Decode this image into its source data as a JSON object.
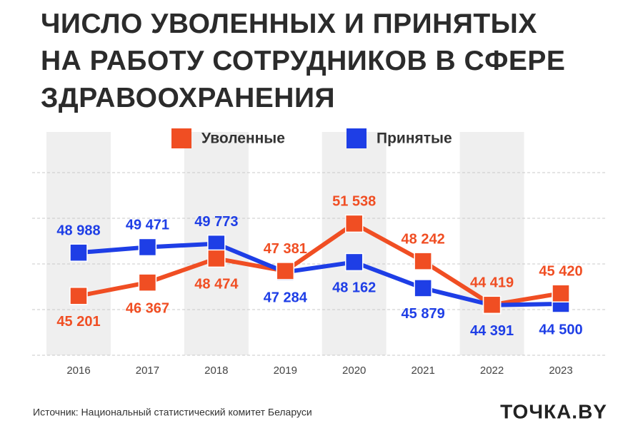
{
  "chart_data": {
    "type": "line",
    "title_lines": [
      "ЧИСЛО УВОЛЕННЫХ И ПРИНЯТЫХ",
      "НА РАБОТУ СОТРУДНИКОВ В СФЕРЕ",
      "ЗДРАВООХРАНЕНИЯ"
    ],
    "categories": [
      "2016",
      "2017",
      "2018",
      "2019",
      "2020",
      "2021",
      "2022",
      "2023"
    ],
    "series": [
      {
        "name": "Уволенные",
        "color": "#f04e23",
        "values": [
          45201,
          46367,
          48474,
          47381,
          51538,
          48242,
          44419,
          45420
        ],
        "value_labels": [
          "45 201",
          "46 367",
          "48 474",
          "47 381",
          "51 538",
          "48 242",
          "44 419",
          "45 420"
        ]
      },
      {
        "name": "Принятые",
        "color": "#1e3ee6",
        "values": [
          48988,
          49471,
          49773,
          47284,
          48162,
          45879,
          44391,
          44500
        ],
        "value_labels": [
          "48 988",
          "49 471",
          "49 773",
          "47 284",
          "48 162",
          "45 879",
          "44 391",
          "44 500"
        ]
      }
    ],
    "ylim": [
      40000,
      56000
    ],
    "yticks": [
      40000,
      44000,
      48000,
      52000,
      56000
    ],
    "grid": true,
    "source": "Источник: Национальный статистический комитет Беларуси",
    "logo": "ТОЧКА.BY"
  }
}
